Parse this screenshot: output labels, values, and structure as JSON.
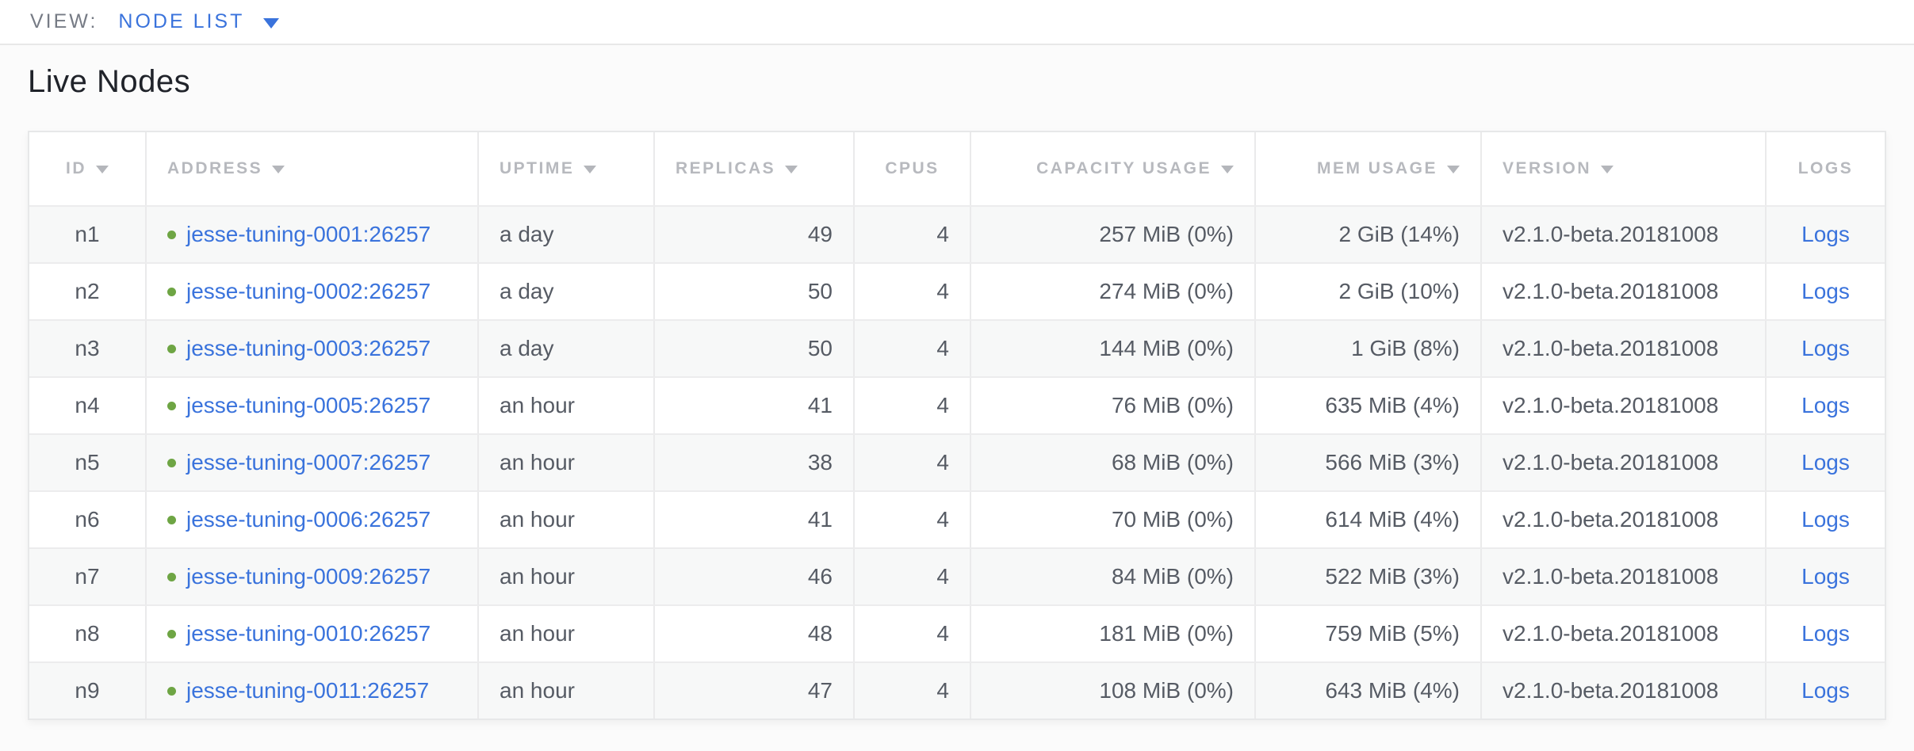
{
  "view_bar": {
    "label": "VIEW:",
    "selected": "NODE LIST"
  },
  "heading": "Live Nodes",
  "colors": {
    "link_blue": "#3a73dc",
    "status_green": "#6ea544",
    "header_gray": "#b7b9be"
  },
  "table": {
    "columns": [
      {
        "key": "id",
        "label": "ID",
        "sortable": true
      },
      {
        "key": "address",
        "label": "ADDRESS",
        "sortable": true
      },
      {
        "key": "uptime",
        "label": "UPTIME",
        "sortable": true
      },
      {
        "key": "replicas",
        "label": "REPLICAS",
        "sortable": true
      },
      {
        "key": "cpus",
        "label": "CPUS",
        "sortable": false
      },
      {
        "key": "capacity_usage",
        "label": "CAPACITY USAGE",
        "sortable": true
      },
      {
        "key": "mem_usage",
        "label": "MEM USAGE",
        "sortable": true
      },
      {
        "key": "version",
        "label": "VERSION",
        "sortable": true
      },
      {
        "key": "logs",
        "label": "LOGS",
        "sortable": false
      }
    ],
    "rows": [
      {
        "id": "n1",
        "address": "jesse-tuning-0001:26257",
        "uptime": "a day",
        "replicas": "49",
        "cpus": "4",
        "capacity_usage": "257 MiB (0%)",
        "mem_usage": "2 GiB (14%)",
        "version": "v2.1.0-beta.20181008",
        "logs_label": "Logs"
      },
      {
        "id": "n2",
        "address": "jesse-tuning-0002:26257",
        "uptime": "a day",
        "replicas": "50",
        "cpus": "4",
        "capacity_usage": "274 MiB (0%)",
        "mem_usage": "2 GiB (10%)",
        "version": "v2.1.0-beta.20181008",
        "logs_label": "Logs"
      },
      {
        "id": "n3",
        "address": "jesse-tuning-0003:26257",
        "uptime": "a day",
        "replicas": "50",
        "cpus": "4",
        "capacity_usage": "144 MiB (0%)",
        "mem_usage": "1 GiB (8%)",
        "version": "v2.1.0-beta.20181008",
        "logs_label": "Logs"
      },
      {
        "id": "n4",
        "address": "jesse-tuning-0005:26257",
        "uptime": "an hour",
        "replicas": "41",
        "cpus": "4",
        "capacity_usage": "76 MiB (0%)",
        "mem_usage": "635 MiB (4%)",
        "version": "v2.1.0-beta.20181008",
        "logs_label": "Logs"
      },
      {
        "id": "n5",
        "address": "jesse-tuning-0007:26257",
        "uptime": "an hour",
        "replicas": "38",
        "cpus": "4",
        "capacity_usage": "68 MiB (0%)",
        "mem_usage": "566 MiB (3%)",
        "version": "v2.1.0-beta.20181008",
        "logs_label": "Logs"
      },
      {
        "id": "n6",
        "address": "jesse-tuning-0006:26257",
        "uptime": "an hour",
        "replicas": "41",
        "cpus": "4",
        "capacity_usage": "70 MiB (0%)",
        "mem_usage": "614 MiB (4%)",
        "version": "v2.1.0-beta.20181008",
        "logs_label": "Logs"
      },
      {
        "id": "n7",
        "address": "jesse-tuning-0009:26257",
        "uptime": "an hour",
        "replicas": "46",
        "cpus": "4",
        "capacity_usage": "84 MiB (0%)",
        "mem_usage": "522 MiB (3%)",
        "version": "v2.1.0-beta.20181008",
        "logs_label": "Logs"
      },
      {
        "id": "n8",
        "address": "jesse-tuning-0010:26257",
        "uptime": "an hour",
        "replicas": "48",
        "cpus": "4",
        "capacity_usage": "181 MiB (0%)",
        "mem_usage": "759 MiB (5%)",
        "version": "v2.1.0-beta.20181008",
        "logs_label": "Logs"
      },
      {
        "id": "n9",
        "address": "jesse-tuning-0011:26257",
        "uptime": "an hour",
        "replicas": "47",
        "cpus": "4",
        "capacity_usage": "108 MiB (0%)",
        "mem_usage": "643 MiB (4%)",
        "version": "v2.1.0-beta.20181008",
        "logs_label": "Logs"
      }
    ]
  }
}
